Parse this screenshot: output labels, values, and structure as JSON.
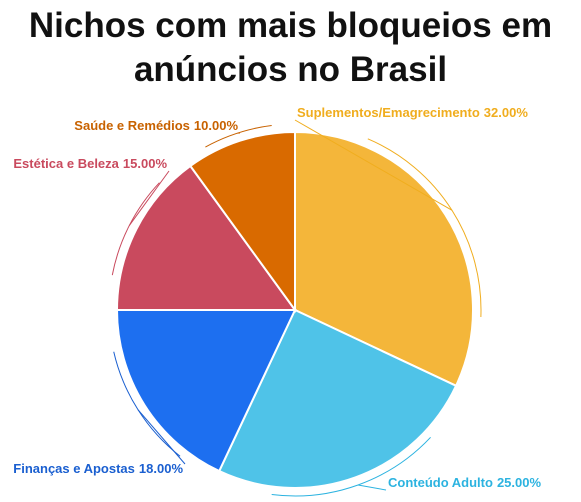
{
  "chart_data": {
    "type": "pie",
    "title": "Nichos com mais bloqueios em anúncios no Brasil",
    "categories": [
      "Suplementos/Emagrecimento",
      "Conteúdo Adulto",
      "Finanças e Apostas",
      "Estética e Beleza",
      "Saúde e Remédios"
    ],
    "values": [
      32,
      25,
      18,
      15,
      10
    ],
    "value_labels": [
      "32.00%",
      "25.00%",
      "18.00%",
      "15.00%",
      "10.00%"
    ],
    "colors": [
      "#f4b63a",
      "#4fc3e8",
      "#1d6ff0",
      "#c94a5e",
      "#d96a00"
    ],
    "label_colors": [
      "#f0ad1e",
      "#2cb3e0",
      "#1a5fd0",
      "#c94a5e",
      "#c86200"
    ]
  }
}
